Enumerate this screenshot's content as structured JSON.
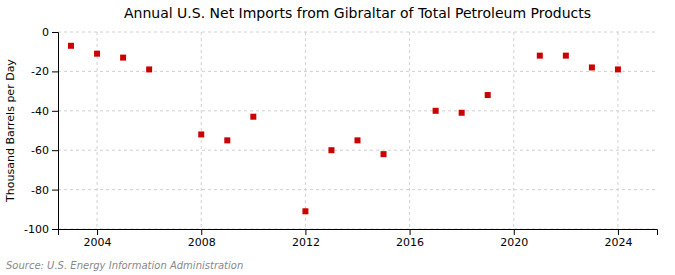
{
  "chart_data": {
    "type": "scatter",
    "title": "Annual U.S. Net Imports from Gibraltar of Total Petroleum Products",
    "y_label": "Thousand Barrels per Day",
    "source": "Source: U.S. Energy Information Administration",
    "x": [
      2003,
      2004,
      2005,
      2006,
      2008,
      2009,
      2010,
      2012,
      2013,
      2014,
      2015,
      2017,
      2018,
      2019,
      2021,
      2022,
      2023,
      2024
    ],
    "values": [
      -7,
      -11,
      -13,
      -19,
      -52,
      -55,
      -43,
      -91,
      -60,
      -55,
      -62,
      -40,
      -41,
      -32,
      -12,
      -12,
      -18,
      -19
    ],
    "color": "#cc0000",
    "marker": "square",
    "ylim": [
      -100,
      0
    ],
    "yticks": [
      0,
      -20,
      -40,
      -60,
      -80,
      -100
    ],
    "xlim": [
      2002.5,
      2025.5
    ],
    "xticks": [
      2004,
      2008,
      2012,
      2016,
      2020,
      2024
    ],
    "grid": true
  }
}
